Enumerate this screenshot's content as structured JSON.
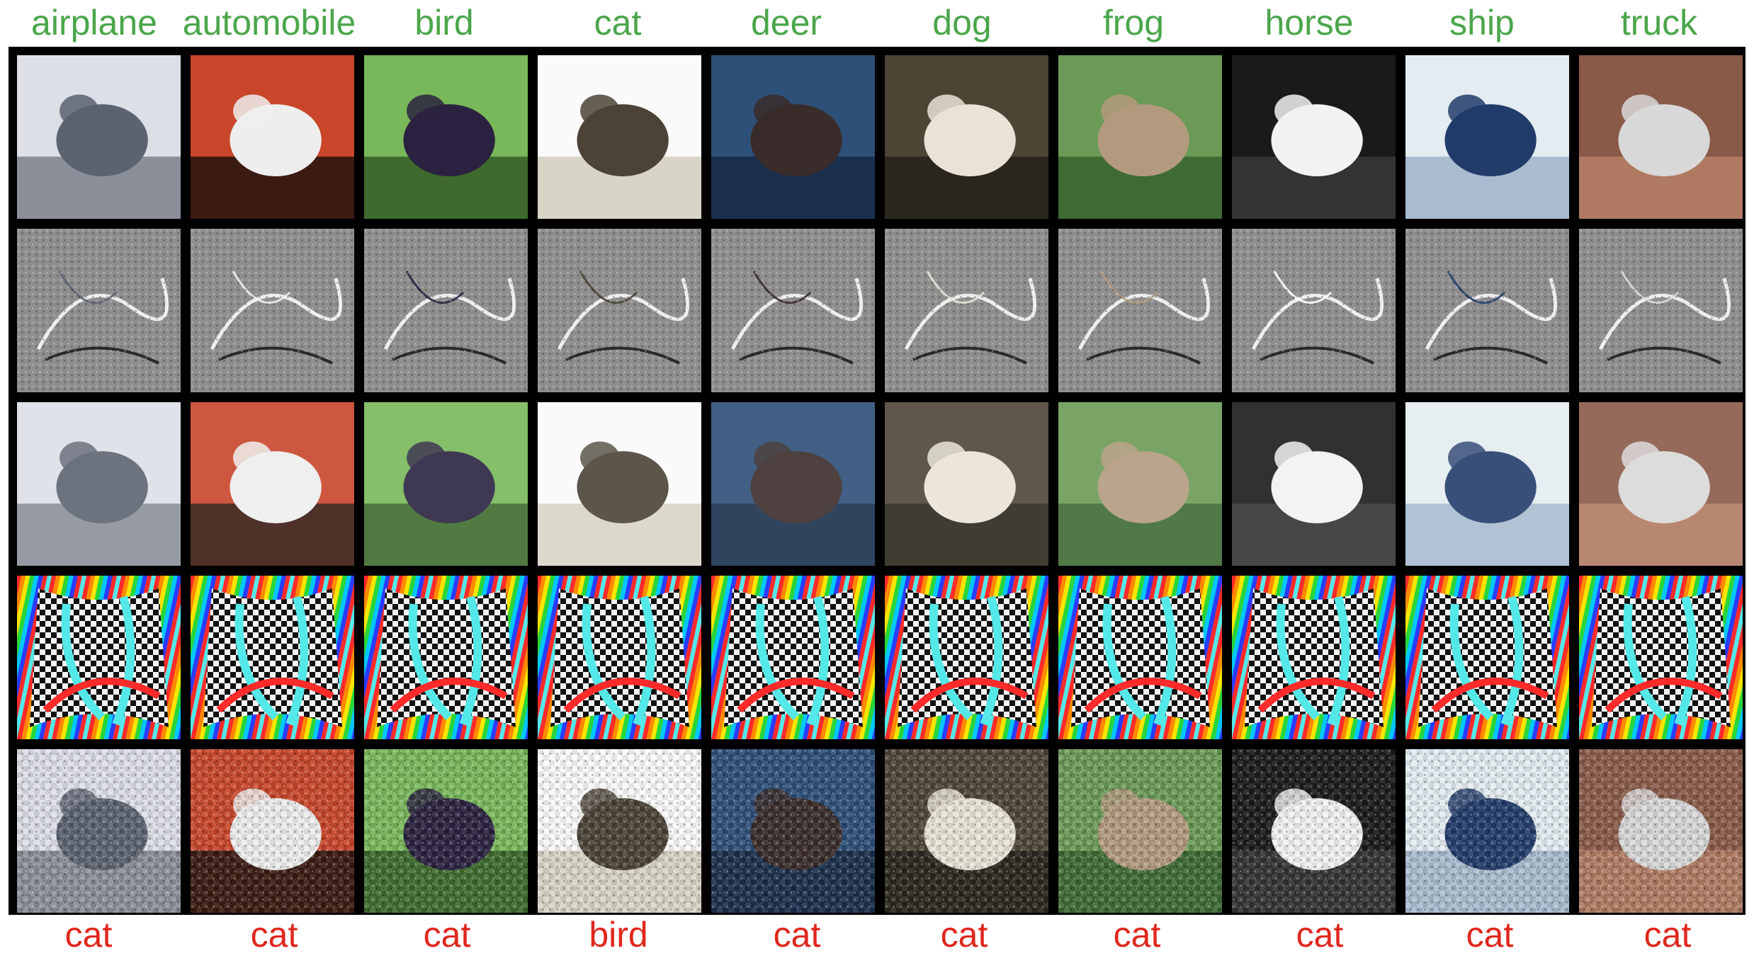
{
  "colors": {
    "class_label": "#4aa64a",
    "predicted_label": "#e0261c",
    "grid_border": "#000000"
  },
  "columns": [
    {
      "class": "airplane",
      "prediction": "cat"
    },
    {
      "class": "automobile",
      "prediction": "cat"
    },
    {
      "class": "bird",
      "prediction": "cat"
    },
    {
      "class": "cat",
      "prediction": "bird"
    },
    {
      "class": "deer",
      "prediction": "cat"
    },
    {
      "class": "dog",
      "prediction": "cat"
    },
    {
      "class": "frog",
      "prediction": "cat"
    },
    {
      "class": "horse",
      "prediction": "cat"
    },
    {
      "class": "ship",
      "prediction": "cat"
    },
    {
      "class": "truck",
      "prediction": "cat"
    }
  ],
  "rows": [
    {
      "kind": "original"
    },
    {
      "kind": "high-frequency-residual"
    },
    {
      "kind": "smoothed"
    },
    {
      "kind": "trigger-pattern"
    },
    {
      "kind": "poisoned"
    }
  ]
}
